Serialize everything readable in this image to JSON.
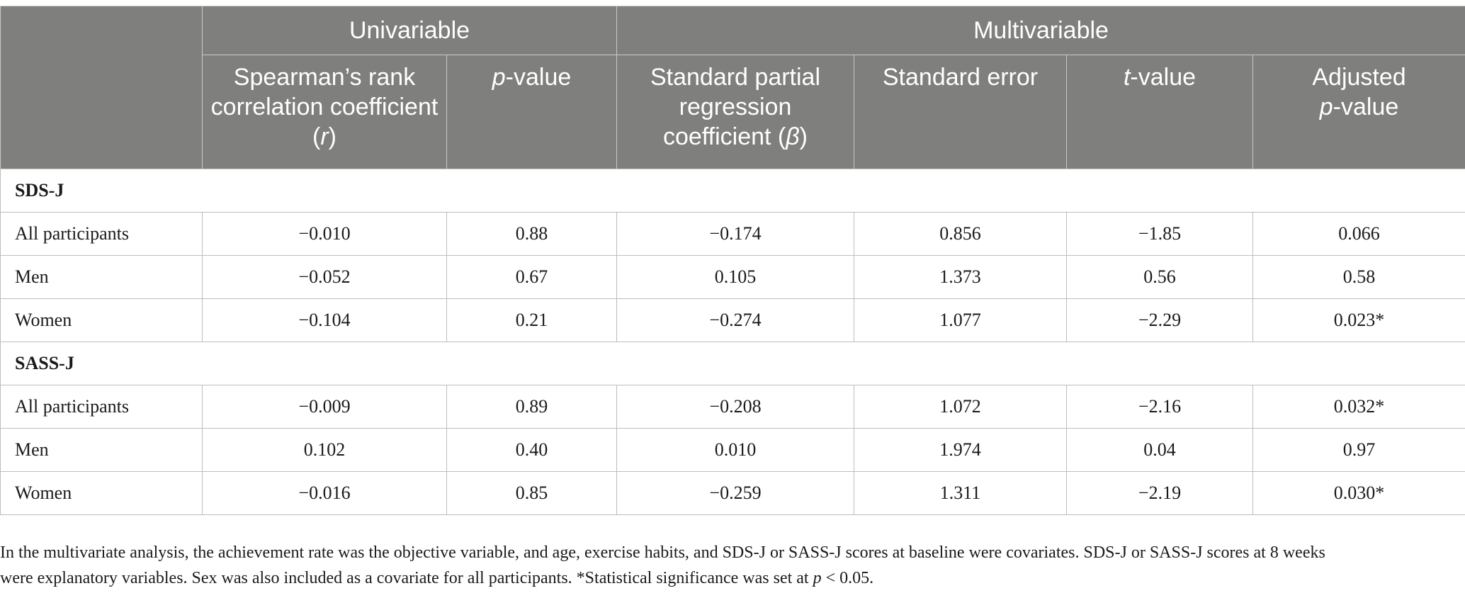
{
  "header": {
    "group_univariable": "Univariable",
    "group_multivariable": "Multivariable",
    "columns": {
      "spearman": {
        "text": "Spearman’s rank correlation coefficient (",
        "sym": "r",
        "close": ")"
      },
      "p_value": {
        "sym": "p",
        "text": "-value"
      },
      "beta": {
        "text": "Standard partial regression coefficient (",
        "sym": "β",
        "close": ")"
      },
      "se": {
        "text": "Standard error"
      },
      "t_value": {
        "sym": "t",
        "text": "-value"
      },
      "adj_p": {
        "text": "Adjusted",
        "sym": "p",
        "text2": "-value"
      }
    }
  },
  "sections": [
    {
      "title": "SDS-J",
      "rows": [
        {
          "label": "All participants",
          "r": "−0.010",
          "p": "0.88",
          "beta": "−0.174",
          "se": "0.856",
          "t": "−1.85",
          "adj_p": "0.066"
        },
        {
          "label": "Men",
          "r": "−0.052",
          "p": "0.67",
          "beta": "0.105",
          "se": "1.373",
          "t": "0.56",
          "adj_p": "0.58"
        },
        {
          "label": "Women",
          "r": "−0.104",
          "p": "0.21",
          "beta": "−0.274",
          "se": "1.077",
          "t": "−2.29",
          "adj_p": "0.023*"
        }
      ]
    },
    {
      "title": "SASS-J",
      "rows": [
        {
          "label": "All participants",
          "r": "−0.009",
          "p": "0.89",
          "beta": "−0.208",
          "se": "1.072",
          "t": "−2.16",
          "adj_p": "0.032*"
        },
        {
          "label": "Men",
          "r": "0.102",
          "p": "0.40",
          "beta": "0.010",
          "se": "1.974",
          "t": "0.04",
          "adj_p": "0.97"
        },
        {
          "label": "Women",
          "r": "−0.016",
          "p": "0.85",
          "beta": "−0.259",
          "se": "1.311",
          "t": "−2.19",
          "adj_p": "0.030*"
        }
      ]
    }
  ],
  "footnote": {
    "line1": "In the multivariate analysis, the achievement rate was the objective variable, and age, exercise habits, and SDS-J or SASS-J scores at baseline were covariates. SDS-J or SASS-J scores at 8 weeks",
    "line2_pre": "were explanatory variables. Sex was also included as a covariate for all participants. *Statistical significance was set at ",
    "line2_sym": "p",
    "line2_post": " < 0.05."
  }
}
